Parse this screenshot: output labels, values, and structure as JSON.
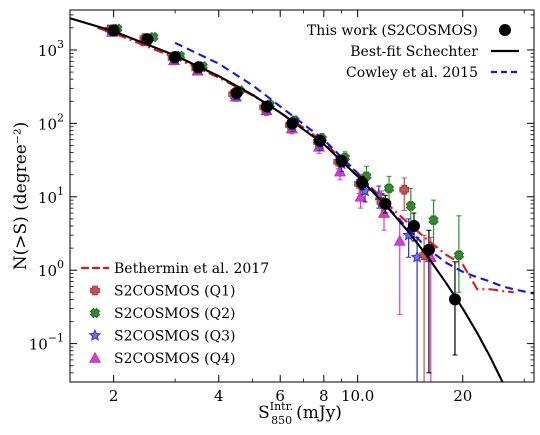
{
  "chart_data": {
    "type": "scatter",
    "xlabel_base": "S",
    "xlabel_sub": "850",
    "xlabel_sup": "Intr.",
    "xlabel_unit": "(mJy)",
    "ylabel": "N(>S) (degree⁻²)",
    "xscale": "log",
    "yscale": "log",
    "xlim": [
      1.5,
      32
    ],
    "ylim": [
      0.03,
      3500
    ],
    "x_ticks": [
      {
        "value": 2,
        "label": "2"
      },
      {
        "value": 4,
        "label": "4"
      },
      {
        "value": 6,
        "label": "6"
      },
      {
        "value": 8,
        "label": "8"
      },
      {
        "value": 10,
        "label": "10.0"
      },
      {
        "value": 20,
        "label": "20"
      }
    ],
    "y_ticks": [
      {
        "value": 0.1,
        "base": "10",
        "exp": "−1"
      },
      {
        "value": 1,
        "base": "10",
        "exp": "0"
      },
      {
        "value": 10,
        "base": "10",
        "exp": "1"
      },
      {
        "value": 100,
        "base": "10",
        "exp": "2"
      },
      {
        "value": 1000,
        "base": "10",
        "exp": "3"
      }
    ],
    "series": [
      {
        "name": "This work (S2COSMOS)",
        "kind": "points",
        "marker": "circle",
        "color": "#000000",
        "points": [
          {
            "x": 2.0,
            "y": 1850,
            "lo": 1650,
            "hi": 2050
          },
          {
            "x": 2.5,
            "y": 1400,
            "lo": 1250,
            "hi": 1550
          },
          {
            "x": 3.0,
            "y": 800,
            "lo": 700,
            "hi": 900
          },
          {
            "x": 3.5,
            "y": 580,
            "lo": 520,
            "hi": 640
          },
          {
            "x": 4.5,
            "y": 260,
            "lo": 230,
            "hi": 290
          },
          {
            "x": 5.5,
            "y": 170,
            "lo": 150,
            "hi": 190
          },
          {
            "x": 6.5,
            "y": 100,
            "lo": 90,
            "hi": 110
          },
          {
            "x": 7.8,
            "y": 58,
            "lo": 50,
            "hi": 66
          },
          {
            "x": 9.0,
            "y": 31,
            "lo": 26,
            "hi": 36
          },
          {
            "x": 10.3,
            "y": 15.5,
            "lo": 12.5,
            "hi": 19
          },
          {
            "x": 12.0,
            "y": 8.0,
            "lo": 6.0,
            "hi": 10.5
          },
          {
            "x": 14.5,
            "y": 4.0,
            "lo": 2.5,
            "hi": 6.0
          },
          {
            "x": 16.0,
            "y": 1.9,
            "lo": 0.04,
            "hi": 3.5
          },
          {
            "x": 19.0,
            "y": 0.4,
            "lo": 0.07,
            "hi": 1.3
          }
        ]
      },
      {
        "name": "Best-fit Schechter",
        "kind": "line",
        "color": "#000000",
        "dash": "",
        "x": [
          1.5,
          2,
          3,
          4,
          5,
          6,
          8,
          10,
          12,
          14,
          16,
          18,
          20,
          22,
          24,
          26
        ],
        "y": [
          2700,
          1800,
          840,
          440,
          245,
          140,
          52,
          19,
          7.8,
          3.3,
          1.45,
          0.65,
          0.3,
          0.14,
          0.065,
          0.03
        ]
      },
      {
        "name": "Cowley et al. 2015",
        "kind": "line",
        "color": "#1414e6",
        "dash": "8,5",
        "x": [
          3,
          4,
          5,
          6,
          8,
          10,
          12,
          14,
          16,
          18,
          20,
          22,
          24,
          26,
          28,
          32
        ],
        "y": [
          1250,
          650,
          330,
          170,
          60,
          21,
          7.8,
          3.6,
          1.9,
          1.25,
          0.95,
          0.8,
          0.7,
          0.6,
          0.55,
          0.48
        ]
      },
      {
        "name": "Bethermin et al. 2017",
        "kind": "line",
        "color": "#e61414",
        "dash": "10,4,2,4",
        "x": [
          1.8,
          2,
          3,
          4,
          5,
          6,
          7,
          8,
          10,
          12,
          14,
          16,
          18,
          20,
          22,
          24,
          26,
          28
        ],
        "y": [
          2000,
          1700,
          780,
          420,
          240,
          140,
          88,
          55,
          21,
          8.5,
          4.3,
          2.5,
          1.6,
          1.2,
          0.55,
          0.55,
          0.52,
          0.5
        ]
      },
      {
        "name": "S2COSMOS (Q1)",
        "kind": "points",
        "marker": "plus",
        "color": "#c85050",
        "points": [
          {
            "x": 1.95,
            "y": 1900,
            "lo": 1700,
            "hi": 2100
          },
          {
            "x": 2.45,
            "y": 1450,
            "lo": 1300,
            "hi": 1600
          },
          {
            "x": 2.95,
            "y": 780,
            "lo": 680,
            "hi": 880
          },
          {
            "x": 3.45,
            "y": 560,
            "lo": 500,
            "hi": 620
          },
          {
            "x": 4.4,
            "y": 250,
            "lo": 220,
            "hi": 280
          },
          {
            "x": 5.4,
            "y": 165,
            "lo": 140,
            "hi": 190
          },
          {
            "x": 6.4,
            "y": 95,
            "lo": 80,
            "hi": 110
          },
          {
            "x": 7.7,
            "y": 56,
            "lo": 46,
            "hi": 66
          },
          {
            "x": 8.8,
            "y": 30,
            "lo": 24,
            "hi": 37
          },
          {
            "x": 10.1,
            "y": 15,
            "lo": 11,
            "hi": 20
          },
          {
            "x": 11.7,
            "y": 8.5,
            "lo": 5.5,
            "hi": 12
          },
          {
            "x": 13.6,
            "y": 12.5,
            "lo": 6.5,
            "hi": 18
          },
          {
            "x": 15.5,
            "y": 1.6,
            "lo": 0.03,
            "hi": 3.0
          }
        ]
      },
      {
        "name": "S2COSMOS (Q2)",
        "kind": "points",
        "marker": "x",
        "color": "#2e8b2e",
        "points": [
          {
            "x": 2.05,
            "y": 1950,
            "lo": 1750,
            "hi": 2150
          },
          {
            "x": 2.6,
            "y": 1500,
            "lo": 1350,
            "hi": 1650
          },
          {
            "x": 3.1,
            "y": 830,
            "lo": 730,
            "hi": 930
          },
          {
            "x": 3.6,
            "y": 600,
            "lo": 530,
            "hi": 670
          },
          {
            "x": 4.6,
            "y": 280,
            "lo": 245,
            "hi": 315
          },
          {
            "x": 5.6,
            "y": 180,
            "lo": 155,
            "hi": 205
          },
          {
            "x": 6.6,
            "y": 110,
            "lo": 95,
            "hi": 125
          },
          {
            "x": 7.9,
            "y": 62,
            "lo": 51,
            "hi": 73
          },
          {
            "x": 9.2,
            "y": 34,
            "lo": 27,
            "hi": 41
          },
          {
            "x": 10.6,
            "y": 19,
            "lo": 14,
            "hi": 26
          },
          {
            "x": 12.3,
            "y": 13,
            "lo": 8.5,
            "hi": 19
          },
          {
            "x": 14.2,
            "y": 7.5,
            "lo": 4.0,
            "hi": 13
          },
          {
            "x": 16.5,
            "y": 4.8,
            "lo": 2.0,
            "hi": 9.0
          },
          {
            "x": 19.5,
            "y": 1.6,
            "lo": 0.5,
            "hi": 5.5
          }
        ]
      },
      {
        "name": "S2COSMOS (Q3)",
        "kind": "points",
        "marker": "star",
        "color": "#2828e0",
        "points": [
          {
            "x": 2.0,
            "y": 1800,
            "lo": 1600,
            "hi": 2000
          },
          {
            "x": 2.5,
            "y": 1350,
            "lo": 1200,
            "hi": 1500
          },
          {
            "x": 3.0,
            "y": 760,
            "lo": 660,
            "hi": 860
          },
          {
            "x": 3.5,
            "y": 550,
            "lo": 490,
            "hi": 610
          },
          {
            "x": 4.5,
            "y": 240,
            "lo": 210,
            "hi": 270
          },
          {
            "x": 5.5,
            "y": 160,
            "lo": 138,
            "hi": 182
          },
          {
            "x": 6.5,
            "y": 92,
            "lo": 78,
            "hi": 106
          },
          {
            "x": 7.8,
            "y": 52,
            "lo": 43,
            "hi": 61
          },
          {
            "x": 9.0,
            "y": 28,
            "lo": 22,
            "hi": 34
          },
          {
            "x": 10.5,
            "y": 12,
            "lo": 8.5,
            "hi": 16
          },
          {
            "x": 11.5,
            "y": 10.5,
            "lo": 7.0,
            "hi": 14
          },
          {
            "x": 14.0,
            "y": 3.0,
            "lo": 1.5,
            "hi": 5.0
          },
          {
            "x": 14.8,
            "y": 1.5,
            "lo": 0.03,
            "hi": 2.8
          }
        ]
      },
      {
        "name": "S2COSMOS (Q4)",
        "kind": "points",
        "marker": "triangle",
        "color": "#d838d8",
        "points": [
          {
            "x": 1.98,
            "y": 1750,
            "lo": 1550,
            "hi": 1950
          },
          {
            "x": 2.48,
            "y": 1300,
            "lo": 1150,
            "hi": 1450
          },
          {
            "x": 2.98,
            "y": 720,
            "lo": 630,
            "hi": 810
          },
          {
            "x": 3.48,
            "y": 520,
            "lo": 460,
            "hi": 580
          },
          {
            "x": 4.48,
            "y": 230,
            "lo": 200,
            "hi": 260
          },
          {
            "x": 5.48,
            "y": 150,
            "lo": 128,
            "hi": 172
          },
          {
            "x": 6.48,
            "y": 85,
            "lo": 72,
            "hi": 98
          },
          {
            "x": 7.75,
            "y": 48,
            "lo": 39,
            "hi": 57
          },
          {
            "x": 8.9,
            "y": 22,
            "lo": 17,
            "hi": 28
          },
          {
            "x": 10.2,
            "y": 10,
            "lo": 7.0,
            "hi": 14
          },
          {
            "x": 11.9,
            "y": 6.0,
            "lo": 3.5,
            "hi": 9.5
          },
          {
            "x": 13.2,
            "y": 2.5,
            "lo": 0.25,
            "hi": 5.0
          },
          {
            "x": 16.2,
            "y": 1.5,
            "lo": 0.03,
            "hi": 2.8
          }
        ]
      }
    ],
    "legends": [
      {
        "placement": "top-right",
        "entries": [
          "This work (S2COSMOS)",
          "Best-fit Schechter",
          "Cowley et al. 2015"
        ]
      },
      {
        "placement": "bottom-left",
        "entries": [
          "Bethermin et al. 2017",
          "S2COSMOS (Q1)",
          "S2COSMOS (Q2)",
          "S2COSMOS (Q3)",
          "S2COSMOS (Q4)"
        ]
      }
    ]
  }
}
